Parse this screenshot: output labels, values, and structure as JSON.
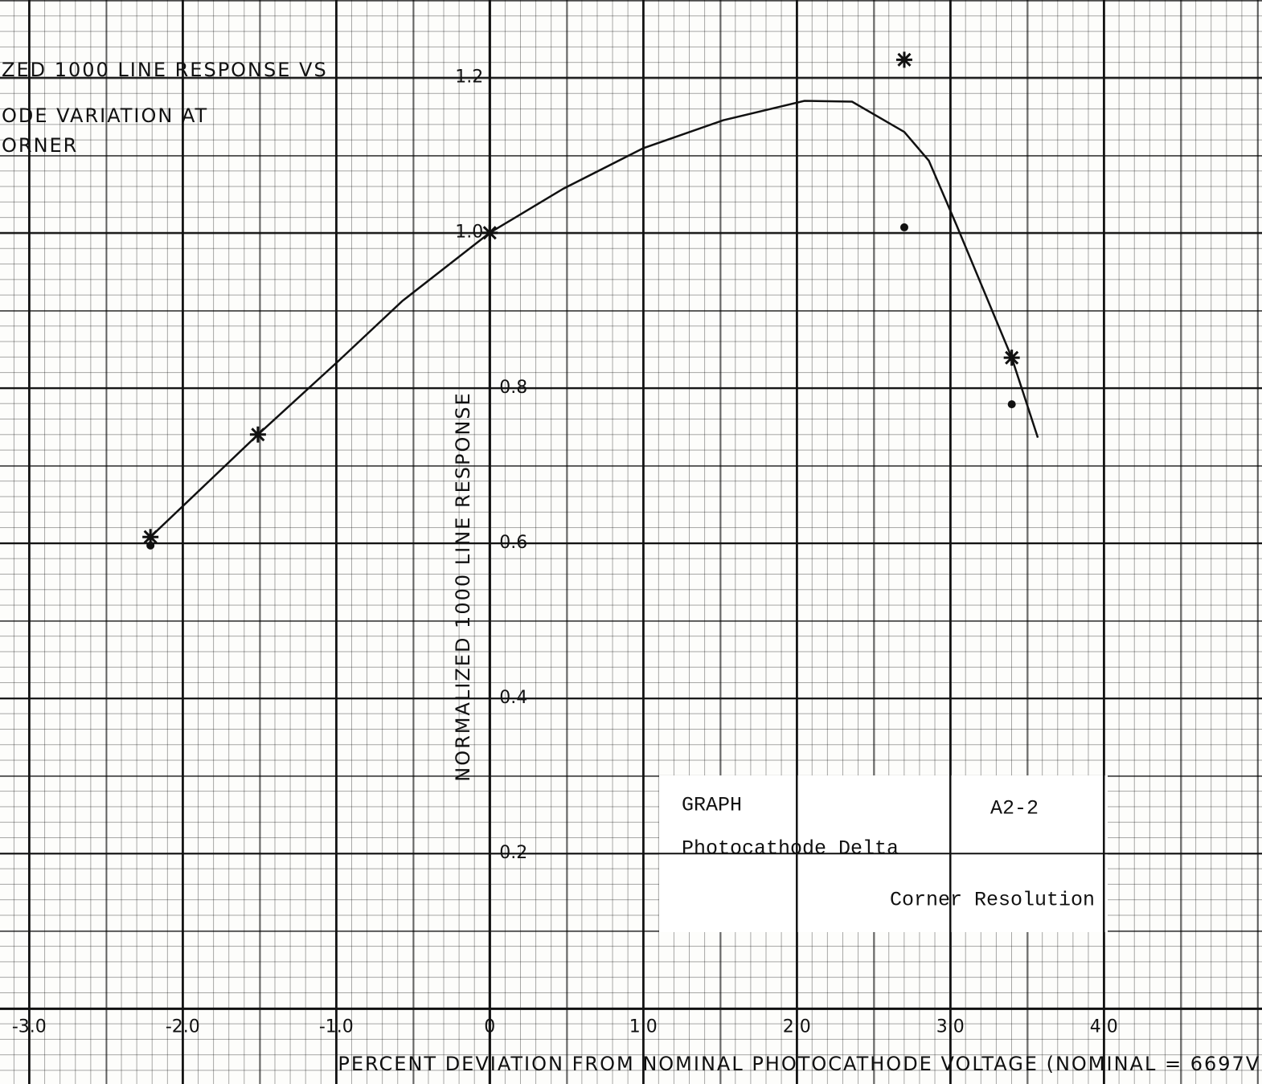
{
  "chart_data": {
    "type": "scatter",
    "title_lines": [
      "ZED 1000 LINE RESPONSE VS",
      "ODE VARIATION AT",
      "ORNER"
    ],
    "x_label": "PERCENT DEVIATION FROM NOMINAL PHOTOCATHODE VOLTAGE (NOMINAL = 6697V)",
    "y_label": "NORMALIZED 1000 LINE RESPONSE",
    "xlim": [
      -3.19,
      5.03
    ],
    "ylim": [
      -0.097,
      1.3
    ],
    "xticks": [
      {
        "value": -3,
        "label": "-3.0"
      },
      {
        "value": -2,
        "label": "-2.0"
      },
      {
        "value": -1,
        "label": "-1.0"
      },
      0,
      {
        "value": 1,
        "label": "1.0"
      },
      {
        "value": 2,
        "label": "2.0"
      },
      {
        "value": 3,
        "label": "3.0"
      },
      {
        "value": 4,
        "label": "4.0"
      }
    ],
    "yticks": [
      0.2,
      0.4,
      0.6,
      0.8,
      {
        "value": 1,
        "label": "1.0"
      },
      1.2
    ],
    "color": "#111111",
    "series": [
      {
        "marker": "star",
        "x": [
          -2.21,
          -1.51,
          0,
          2.7,
          3.4
        ],
        "values": [
          0.608,
          0.74,
          1.0,
          1.223,
          0.839
        ]
      },
      {
        "marker": "dot",
        "x": [
          -2.21,
          2.7,
          3.4
        ],
        "values": [
          0.597,
          1.007,
          0.779
        ]
      }
    ],
    "curve": {
      "x": [
        -2.21,
        -1.51,
        -0.99,
        -0.57,
        0,
        0.48,
        1.0,
        1.52,
        2.05,
        2.36,
        2.7,
        2.86,
        3.04,
        3.4,
        3.57
      ],
      "values": [
        0.608,
        0.74,
        0.834,
        0.912,
        1.0,
        1.057,
        1.109,
        1.145,
        1.17,
        1.169,
        1.13,
        1.093,
        1.01,
        0.839,
        0.736
      ]
    },
    "box": {
      "graph": "GRAPH",
      "number": "A2-2",
      "subject": "Photocathode Delta",
      "topic": "Corner Resolution"
    }
  }
}
